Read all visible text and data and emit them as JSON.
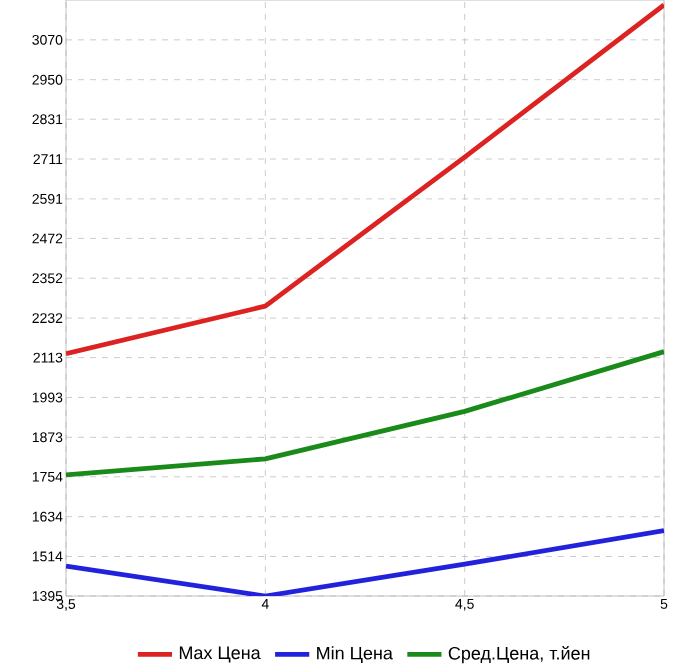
{
  "chart_data": {
    "type": "line",
    "x": [
      3.5,
      4,
      4.5,
      5
    ],
    "series": [
      {
        "name": "Max Цена",
        "color": "#dd2222",
        "values": [
          2125,
          2268,
          2717,
          3175
        ]
      },
      {
        "name": "Min Цена",
        "color": "#2222dd",
        "values": [
          1485,
          1395,
          1491,
          1592
        ]
      },
      {
        "name": "Сред.Цена, т.йен",
        "color": "#1a8a1a",
        "values": [
          1760,
          1808,
          1951,
          2131
        ]
      }
    ],
    "xlim": [
      3.5,
      5
    ],
    "ylim": [
      1395,
      3190
    ],
    "xticks": [
      {
        "value": 3.5,
        "label": "3,5"
      },
      4,
      {
        "value": 4.5,
        "label": "4,5"
      },
      5
    ],
    "yticks": [
      1395,
      1514,
      1634,
      1754,
      1873,
      1993,
      2113,
      2232,
      2352,
      2472,
      2591,
      2711,
      2831,
      2950,
      3070
    ],
    "grid": true,
    "legend": "bottom",
    "marker": "none",
    "line_style": "solid"
  }
}
